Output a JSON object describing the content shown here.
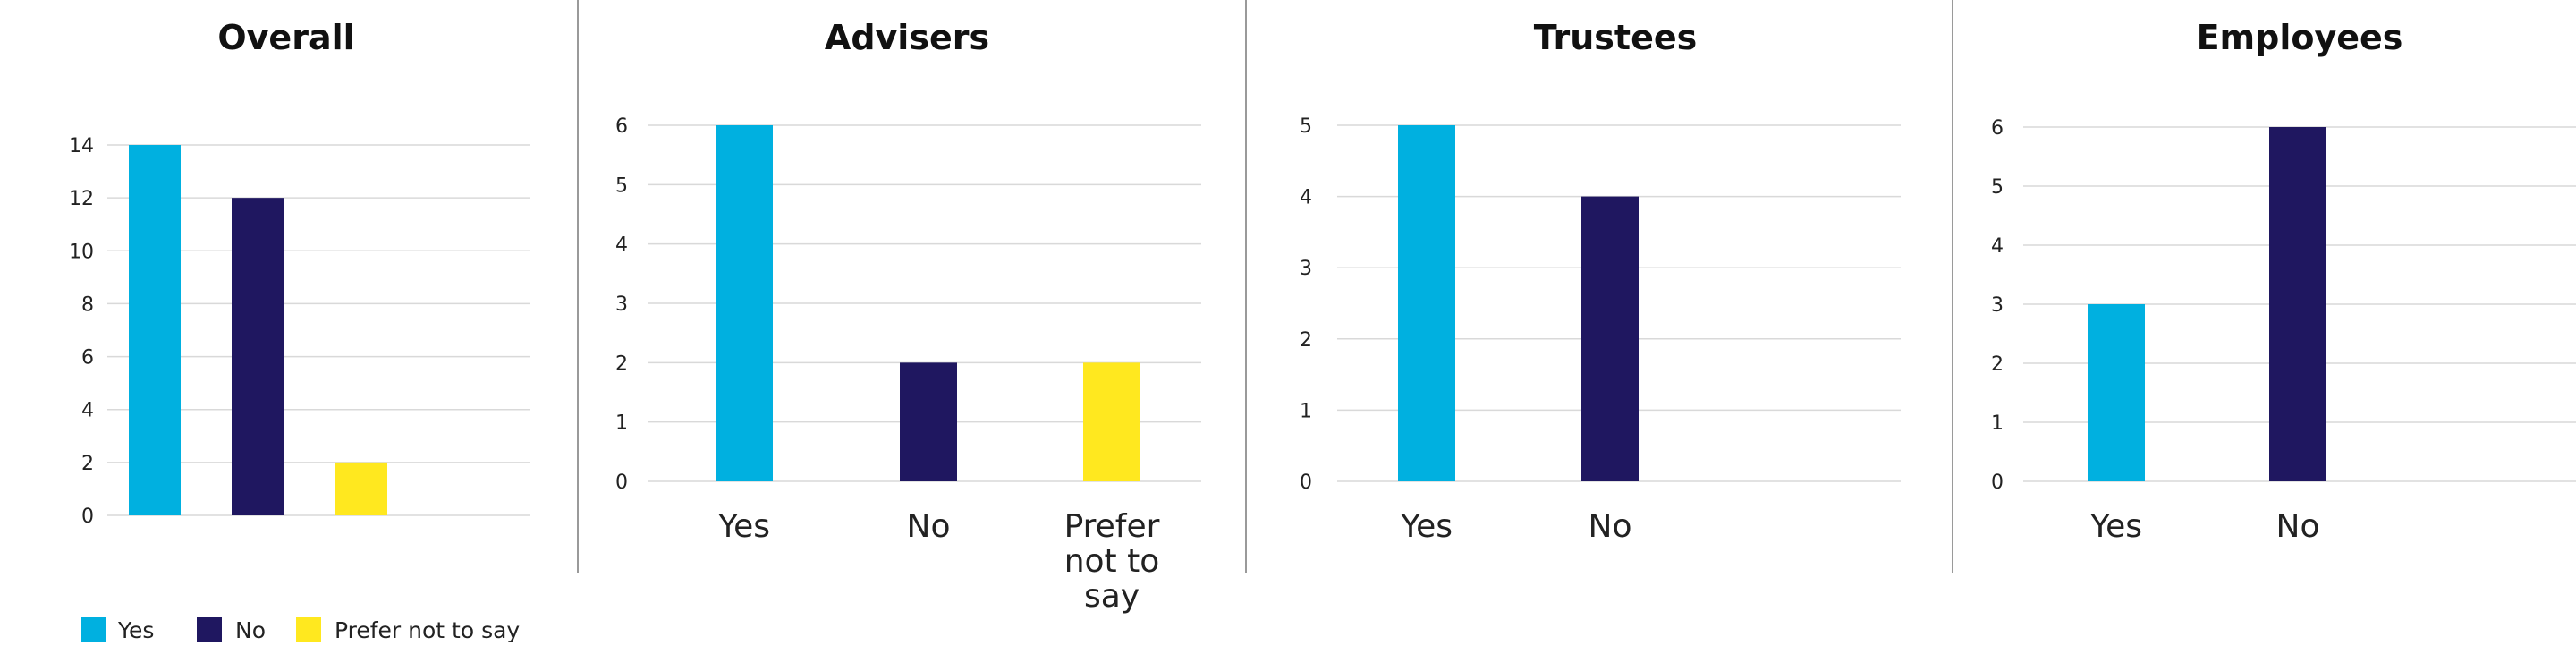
{
  "colors": {
    "yes": "#00b0e0",
    "no": "#1f1760",
    "prefer": "#ffe81f",
    "grid": "#d9d9d9",
    "divider": "#9a9a9a"
  },
  "chart_data": [
    {
      "type": "bar",
      "title": "Overall",
      "categories": [
        "Yes",
        "No",
        "Prefer not to say"
      ],
      "show_categories": false,
      "values": [
        14,
        12,
        2
      ],
      "ylim": [
        0,
        14
      ],
      "yticks": [
        0,
        2,
        4,
        6,
        8,
        10,
        12,
        14
      ],
      "grid": true
    },
    {
      "type": "bar",
      "title": "Advisers",
      "categories": [
        "Yes",
        "No",
        "Prefer not to say"
      ],
      "category_lines": [
        [
          "Yes"
        ],
        [
          "No"
        ],
        [
          "Prefer",
          "not to",
          "say"
        ]
      ],
      "show_categories": true,
      "values": [
        6,
        2,
        2
      ],
      "ylim": [
        0,
        6
      ],
      "yticks": [
        0,
        1,
        2,
        3,
        4,
        5,
        6
      ],
      "grid": true
    },
    {
      "type": "bar",
      "title": "Trustees",
      "categories": [
        "Yes",
        "No"
      ],
      "show_categories": true,
      "values": [
        5,
        4
      ],
      "ylim": [
        0,
        5
      ],
      "yticks": [
        0,
        1,
        2,
        3,
        4,
        5
      ],
      "grid": true
    },
    {
      "type": "bar",
      "title": "Employees",
      "categories": [
        "Yes",
        "No"
      ],
      "show_categories": true,
      "values": [
        3,
        6
      ],
      "ylim": [
        0,
        6
      ],
      "yticks": [
        0,
        1,
        2,
        3,
        4,
        5,
        6
      ],
      "grid": true
    }
  ],
  "legend": [
    {
      "label": "Yes",
      "color_key": "yes"
    },
    {
      "label": "No",
      "color_key": "no"
    },
    {
      "label": "Prefer not to say",
      "color_key": "prefer"
    }
  ]
}
